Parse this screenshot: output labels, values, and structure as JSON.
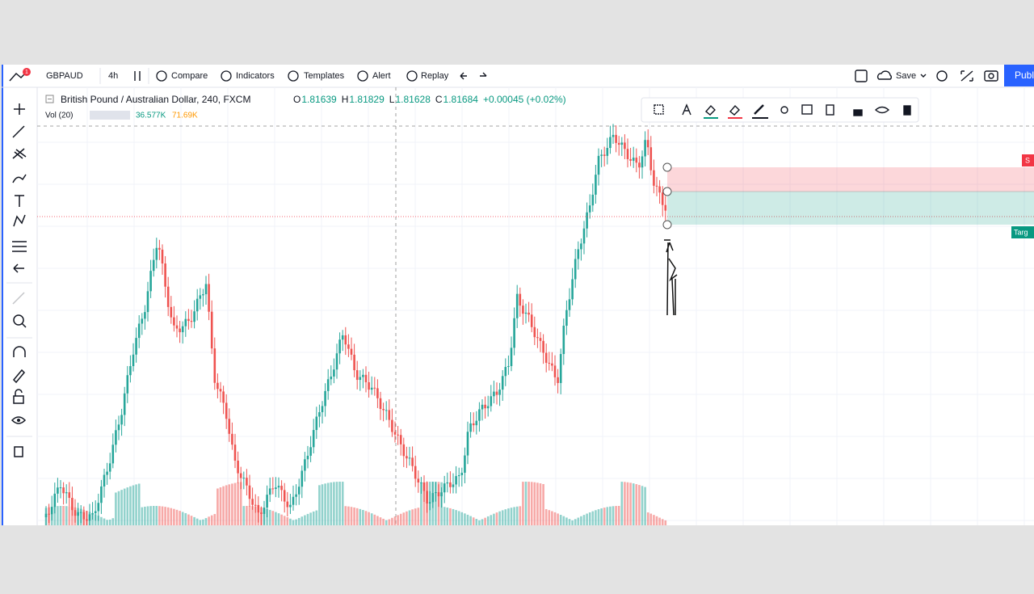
{
  "toolbar": {
    "symbol": "GBPAUD",
    "interval": "4h",
    "buttons": [
      "Compare",
      "Indicators",
      "Templates",
      "Alert",
      "Replay"
    ],
    "save": "Save",
    "publish": "Publ",
    "badge": "1"
  },
  "legend": {
    "title": "British Pound / Australian Dollar, 240, FXCM",
    "ohlc": [
      {
        "label": "O",
        "value": "1.81639"
      },
      {
        "label": "H",
        "value": "1.81829"
      },
      {
        "label": "L",
        "value": "1.81628"
      },
      {
        "label": "C",
        "value": "1.81684"
      }
    ],
    "change": "+0.00045 (+0.02%)",
    "volume": {
      "label": "Vol (20)",
      "values": [
        "36.577K",
        "71.69K"
      ]
    }
  },
  "price_tags": {
    "stop": "S",
    "target": "Targ"
  }
}
